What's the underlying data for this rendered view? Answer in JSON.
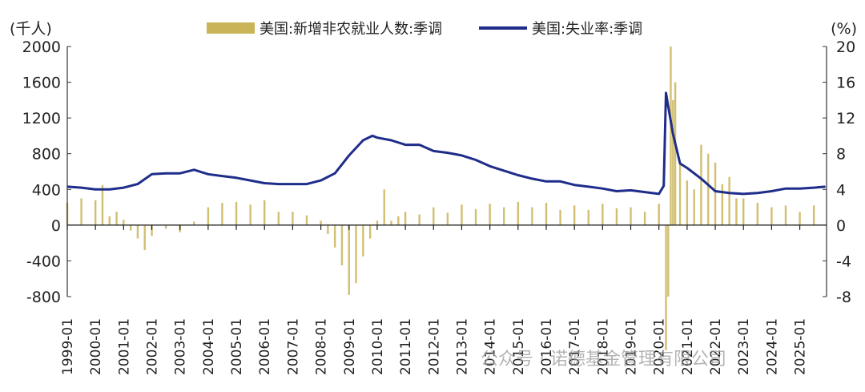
{
  "chart_data": {
    "type": "bar+line",
    "left_axis": {
      "label": "(千人)",
      "ticks": [
        2000,
        1600,
        1200,
        800,
        400,
        0,
        -400,
        -800
      ],
      "range": [
        -800,
        2000
      ]
    },
    "right_axis": {
      "label": "(%)",
      "ticks": [
        20,
        16,
        12,
        8,
        4,
        0,
        -4,
        -8
      ],
      "range": [
        -8,
        20
      ]
    },
    "x_axis": {
      "ticks": [
        "1999-01",
        "2000-01",
        "2001-01",
        "2002-01",
        "2003-01",
        "2004-01",
        "2005-01",
        "2006-01",
        "2007-01",
        "2008-01",
        "2009-01",
        "2010-01",
        "2011-01",
        "2012-01",
        "2013-01",
        "2014-01",
        "2015-01",
        "2016-01",
        "2017-01",
        "2018-01",
        "2019-01",
        "2020-01",
        "2021-01",
        "2022-01",
        "2023-01",
        "2024-01",
        "2025-01"
      ],
      "start": 1999.0,
      "end": 2025.95
    },
    "legend": [
      {
        "name": "美国:新增非农就业人数:季调",
        "type": "bar",
        "color": "#c9b458"
      },
      {
        "name": "美国:失业率:季调",
        "type": "line",
        "color": "#1f2d8a"
      }
    ],
    "series": [
      {
        "name": "美国:新增非农就业人数:季调",
        "axis": "left",
        "x": [
          1999.0,
          1999.5,
          2000.0,
          2000.25,
          2000.5,
          2000.75,
          2001.0,
          2001.25,
          2001.5,
          2001.75,
          2002.0,
          2002.5,
          2003.0,
          2003.5,
          2004.0,
          2004.5,
          2005.0,
          2005.5,
          2006.0,
          2006.5,
          2007.0,
          2007.5,
          2008.0,
          2008.25,
          2008.5,
          2008.75,
          2009.0,
          2009.25,
          2009.5,
          2009.75,
          2010.0,
          2010.25,
          2010.5,
          2010.75,
          2011.0,
          2011.5,
          2012.0,
          2012.5,
          2013.0,
          2013.5,
          2014.0,
          2014.5,
          2015.0,
          2015.5,
          2016.0,
          2016.5,
          2017.0,
          2017.5,
          2018.0,
          2018.5,
          2019.0,
          2019.5,
          2020.0,
          2020.25,
          2020.33,
          2020.42,
          2020.5,
          2020.58,
          2020.75,
          2021.0,
          2021.25,
          2021.5,
          2021.75,
          2022.0,
          2022.25,
          2022.5,
          2022.75,
          2023.0,
          2023.5,
          2024.0,
          2024.5,
          2025.0,
          2025.5
        ],
        "values": [
          250,
          300,
          280,
          450,
          100,
          150,
          60,
          -60,
          -150,
          -280,
          -120,
          -40,
          -80,
          40,
          200,
          250,
          260,
          230,
          280,
          150,
          150,
          110,
          50,
          -100,
          -250,
          -450,
          -780,
          -650,
          -350,
          -150,
          50,
          400,
          50,
          100,
          150,
          120,
          200,
          140,
          230,
          180,
          240,
          200,
          260,
          200,
          250,
          170,
          220,
          170,
          240,
          190,
          200,
          150,
          240,
          -1400,
          -800,
          2000,
          1400,
          1600,
          680,
          500,
          400,
          900,
          800,
          700,
          460,
          540,
          300,
          300,
          250,
          200,
          220,
          150,
          220
        ]
      },
      {
        "name": "美国:失业率:季调",
        "axis": "right",
        "x": [
          1999.0,
          1999.5,
          2000.0,
          2000.5,
          2001.0,
          2001.5,
          2002.0,
          2002.5,
          2003.0,
          2003.5,
          2004.0,
          2004.5,
          2005.0,
          2005.5,
          2006.0,
          2006.5,
          2007.0,
          2007.5,
          2008.0,
          2008.5,
          2009.0,
          2009.5,
          2009.83,
          2010.0,
          2010.5,
          2011.0,
          2011.5,
          2012.0,
          2012.5,
          2013.0,
          2013.5,
          2014.0,
          2014.5,
          2015.0,
          2015.5,
          2016.0,
          2016.5,
          2017.0,
          2017.5,
          2018.0,
          2018.5,
          2019.0,
          2019.5,
          2020.0,
          2020.17,
          2020.25,
          2020.33,
          2020.5,
          2020.75,
          2021.0,
          2021.5,
          2022.0,
          2022.5,
          2023.0,
          2023.5,
          2024.0,
          2024.5,
          2025.0,
          2025.5,
          2025.9
        ],
        "values": [
          4.3,
          4.2,
          4.0,
          4.0,
          4.2,
          4.6,
          5.7,
          5.8,
          5.8,
          6.2,
          5.7,
          5.5,
          5.3,
          5.0,
          4.7,
          4.6,
          4.6,
          4.6,
          5.0,
          5.8,
          7.8,
          9.5,
          10.0,
          9.8,
          9.5,
          9.0,
          9.0,
          8.3,
          8.1,
          7.8,
          7.3,
          6.6,
          6.1,
          5.6,
          5.2,
          4.9,
          4.9,
          4.5,
          4.3,
          4.1,
          3.8,
          3.9,
          3.7,
          3.5,
          4.4,
          14.8,
          13.3,
          10.2,
          6.9,
          6.4,
          5.2,
          3.8,
          3.6,
          3.5,
          3.6,
          3.8,
          4.1,
          4.1,
          4.2,
          4.3
        ]
      }
    ]
  },
  "watermark": {
    "text": "公众号 · 诺德基金管理有限公司"
  }
}
